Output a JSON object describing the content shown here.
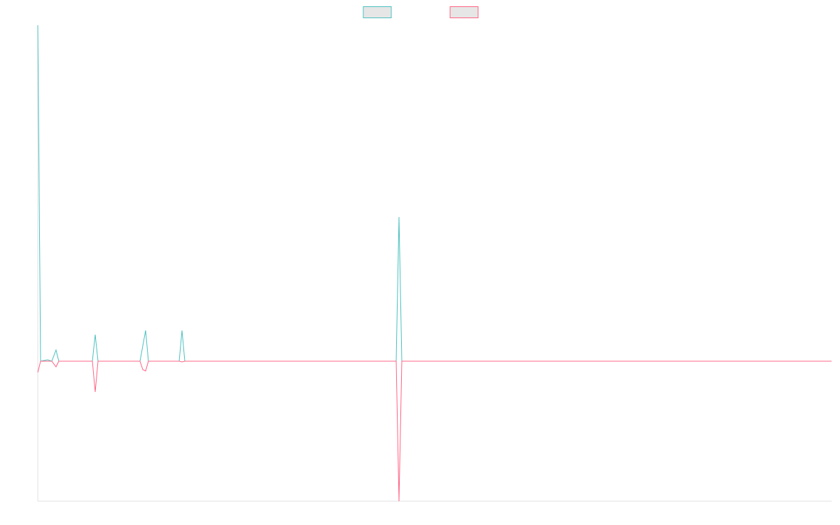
{
  "chart_data": {
    "type": "line",
    "legend": "top",
    "x": [
      0,
      4,
      14,
      20,
      26,
      30,
      78,
      82,
      86,
      146,
      150,
      154,
      158,
      202,
      206,
      210,
      512,
      516,
      520,
      1134
    ],
    "xlim": [
      0,
      1134
    ],
    "ylim": [
      -100,
      240
    ],
    "grid": false,
    "series": [
      {
        "color": "#4bc0c0",
        "values": [
          240,
          0,
          1,
          0,
          8,
          0,
          0,
          19,
          0,
          0,
          11,
          22,
          0,
          0,
          22,
          0,
          0,
          103,
          0,
          0
        ]
      },
      {
        "color": "#ff6384",
        "values": [
          -8,
          0,
          0,
          0,
          -4,
          0,
          0,
          -22,
          0,
          0,
          -6,
          -7,
          0,
          0,
          -0.5,
          0,
          0,
          -100,
          0,
          0
        ]
      }
    ]
  }
}
